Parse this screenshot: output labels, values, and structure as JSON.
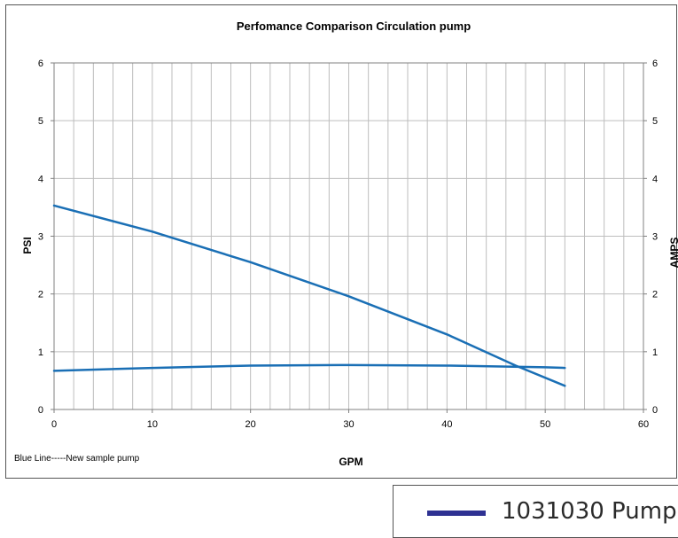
{
  "chart_data": {
    "type": "line",
    "title": "Perfomance Comparison Circulation pump",
    "xlabel": "GPM",
    "ylabel": "PSI",
    "y2label": "AMPS",
    "xlim": [
      0,
      60
    ],
    "ylim": [
      0,
      6
    ],
    "y2lim": [
      0,
      6
    ],
    "xticks": [
      "0",
      "10",
      "20",
      "30",
      "40",
      "50",
      "60"
    ],
    "yticks": [
      "0",
      "1",
      "2",
      "3",
      "4",
      "5",
      "6"
    ],
    "y2ticks": [
      "0",
      "1",
      "2",
      "3",
      "4",
      "5",
      "6"
    ],
    "grid": true,
    "series_color": "#1a6fb5",
    "series": [
      {
        "x": [
          0,
          10,
          20,
          30,
          40,
          47,
          52
        ],
        "values": [
          3.53,
          3.08,
          2.55,
          1.96,
          1.3,
          0.76,
          0.41
        ]
      },
      {
        "x": [
          0,
          10,
          20,
          30,
          40,
          50,
          52
        ],
        "values": [
          0.67,
          0.72,
          0.76,
          0.77,
          0.76,
          0.73,
          0.72
        ]
      }
    ],
    "annotation": "Blue Line-----New sample pump"
  },
  "legend": {
    "label": "1031030 Pump",
    "color": "#2e3192"
  }
}
